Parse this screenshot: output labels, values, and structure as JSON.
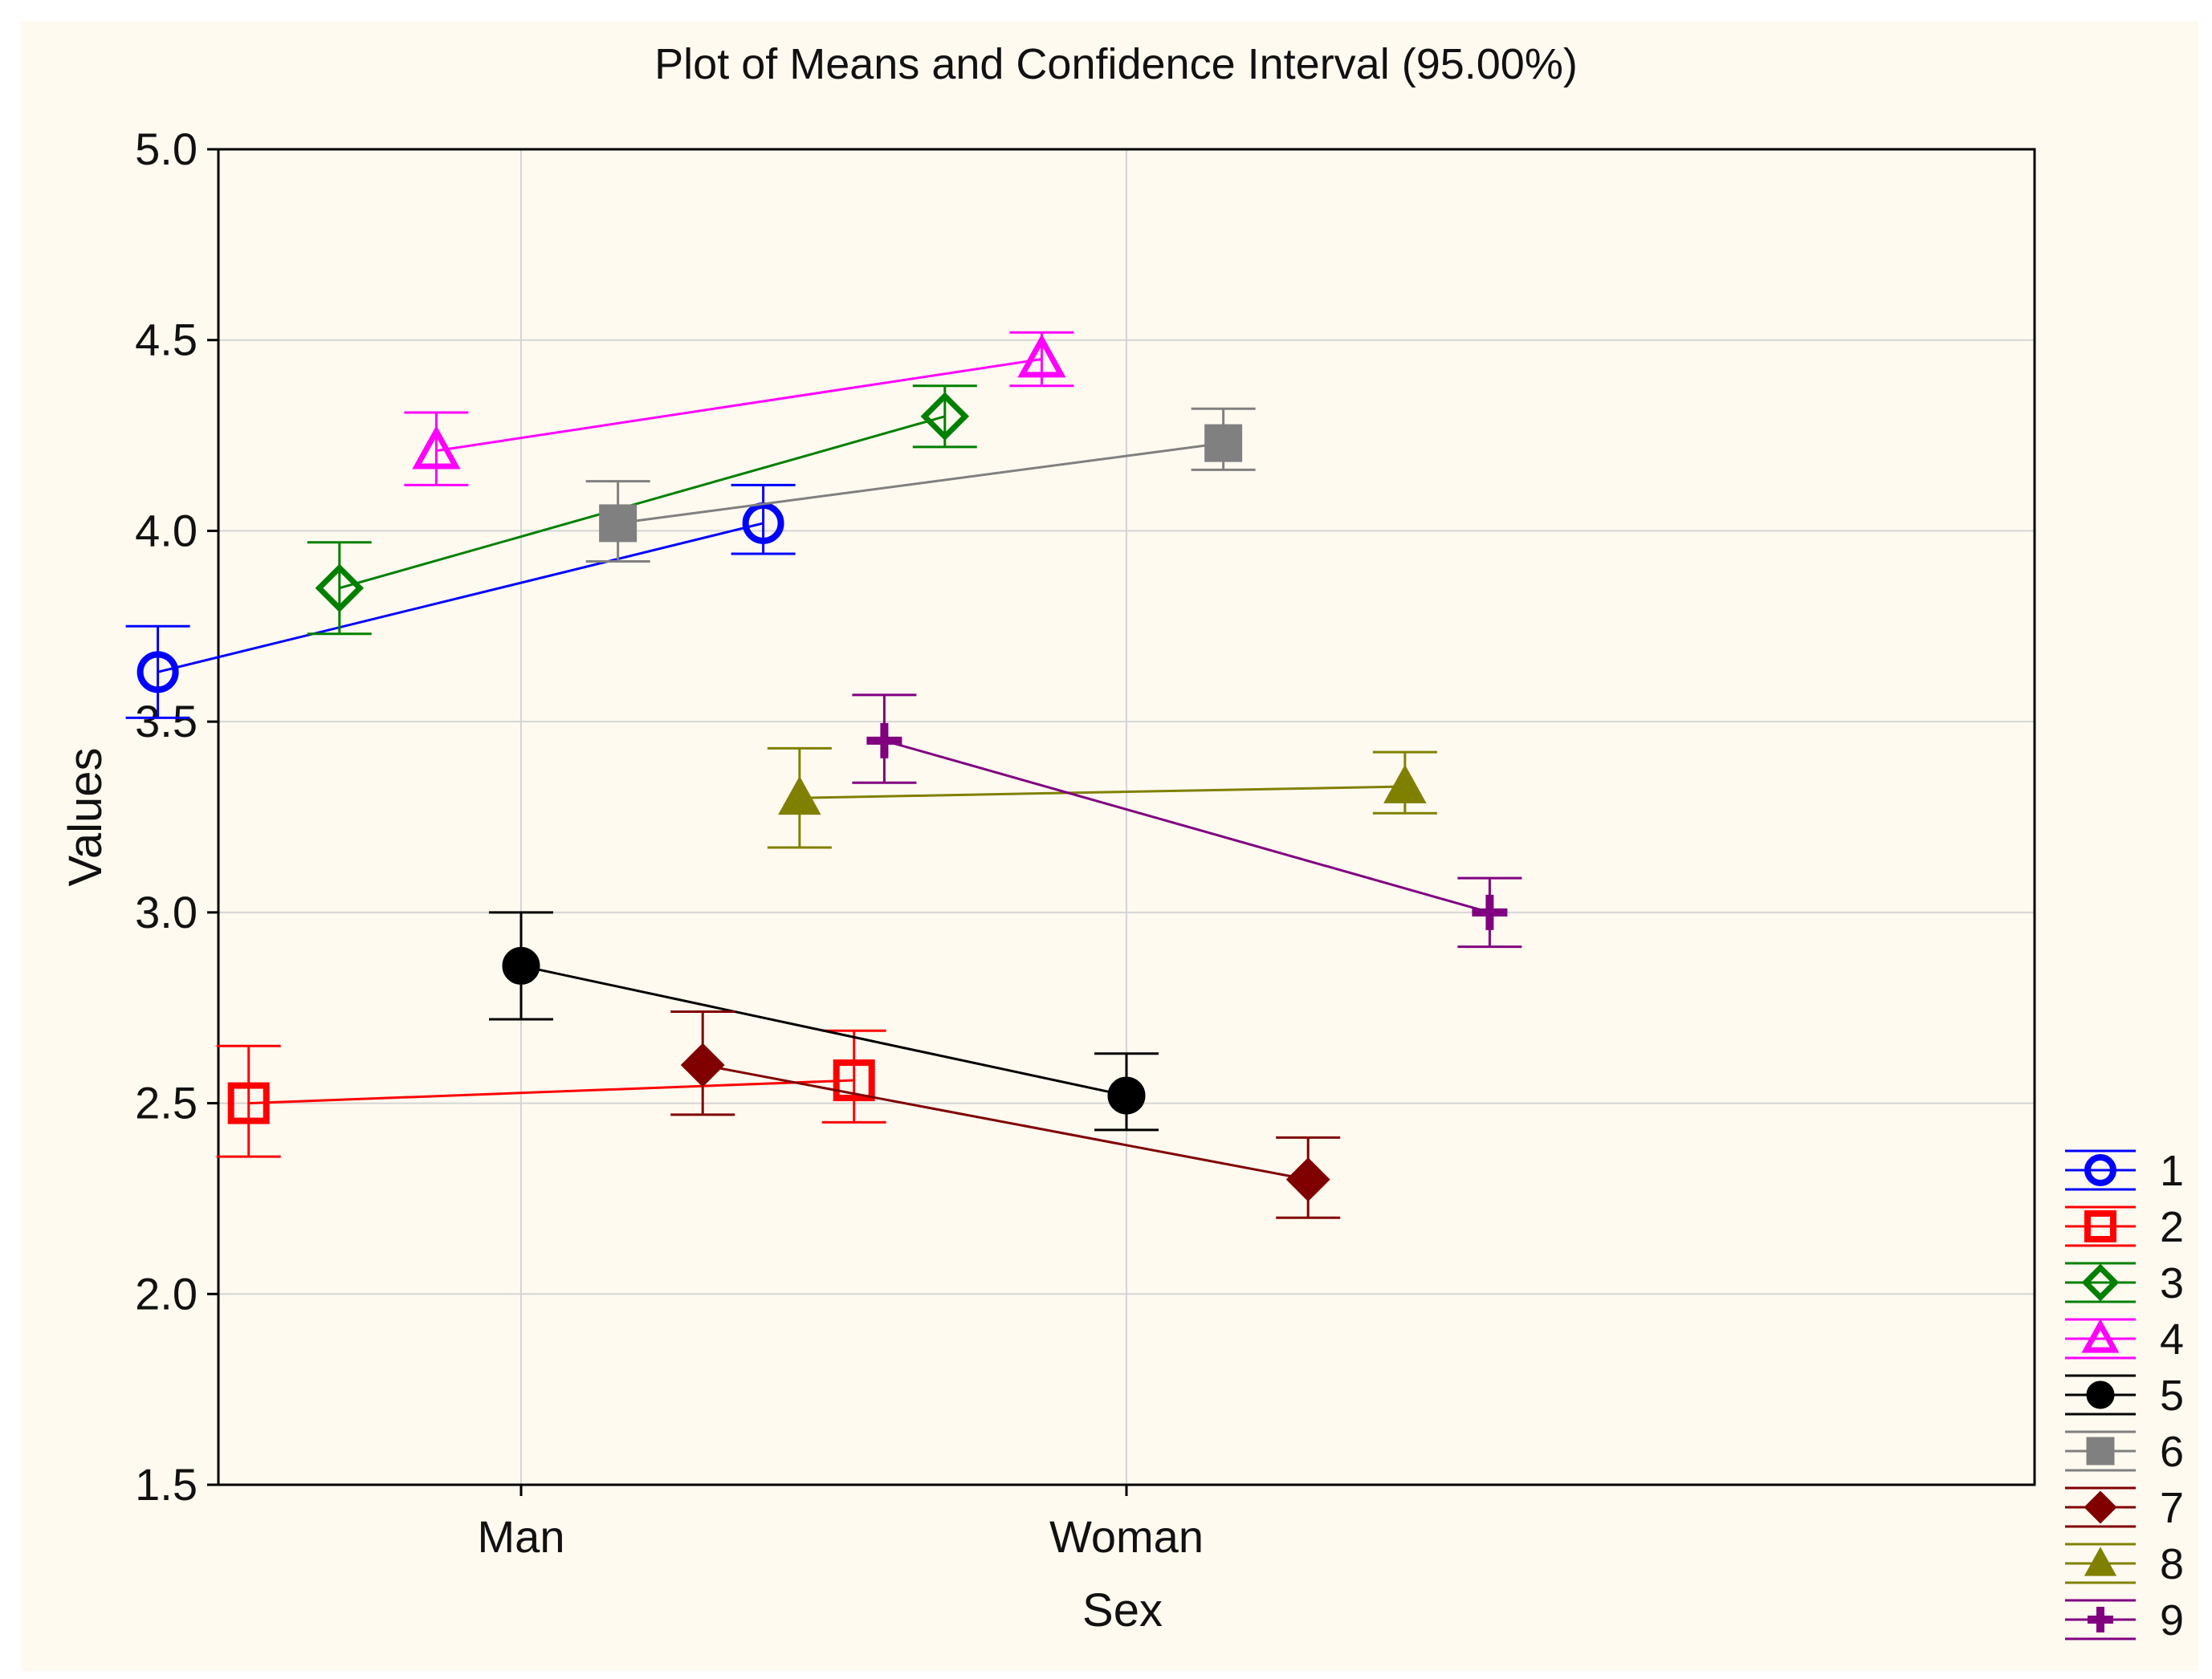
{
  "chart_data": {
    "type": "line",
    "title": "Plot of Means and Confidence Interval (95.00%)",
    "xlabel": "Sex",
    "ylabel": "Values",
    "categories": [
      "Man",
      "Woman"
    ],
    "ylim": [
      1.5,
      5.0
    ],
    "yticks": [
      "1.5",
      "2.0",
      "2.5",
      "3.0",
      "3.5",
      "4.0",
      "4.5",
      "5.0"
    ],
    "grid": true,
    "legend_position": "bottom-right",
    "series": [
      {
        "name": "1",
        "color": "#0000ff",
        "marker": "circle-open",
        "offset": -0.6,
        "values": [
          3.63,
          4.02
        ],
        "ci_low": [
          3.51,
          3.94
        ],
        "ci_high": [
          3.75,
          4.12
        ]
      },
      {
        "name": "2",
        "color": "#ff0000",
        "marker": "square-open",
        "offset": -0.45,
        "values": [
          2.5,
          2.56
        ],
        "ci_low": [
          2.36,
          2.45
        ],
        "ci_high": [
          2.65,
          2.69
        ]
      },
      {
        "name": "3",
        "color": "#008000",
        "marker": "diamond-open",
        "offset": -0.3,
        "values": [
          3.85,
          4.3
        ],
        "ci_low": [
          3.73,
          4.22
        ],
        "ci_high": [
          3.97,
          4.38
        ]
      },
      {
        "name": "4",
        "color": "#ff00ff",
        "marker": "triangle-open",
        "offset": -0.14,
        "values": [
          4.21,
          4.45
        ],
        "ci_low": [
          4.12,
          4.38
        ],
        "ci_high": [
          4.31,
          4.52
        ]
      },
      {
        "name": "5",
        "color": "#000000",
        "marker": "circle-filled",
        "offset": 0.0,
        "values": [
          2.86,
          2.52
        ],
        "ci_low": [
          2.72,
          2.43
        ],
        "ci_high": [
          3.0,
          2.63
        ]
      },
      {
        "name": "6",
        "color": "#808080",
        "marker": "square-filled",
        "offset": 0.16,
        "values": [
          4.02,
          4.23
        ],
        "ci_low": [
          3.92,
          4.16
        ],
        "ci_high": [
          4.13,
          4.32
        ]
      },
      {
        "name": "7",
        "color": "#800000",
        "marker": "diamond-filled",
        "offset": 0.3,
        "values": [
          2.6,
          2.3
        ],
        "ci_low": [
          2.47,
          2.2
        ],
        "ci_high": [
          2.74,
          2.41
        ]
      },
      {
        "name": "8",
        "color": "#808000",
        "marker": "triangle-filled",
        "offset": 0.46,
        "values": [
          3.3,
          3.33
        ],
        "ci_low": [
          3.17,
          3.26
        ],
        "ci_high": [
          3.43,
          3.42
        ]
      },
      {
        "name": "9",
        "color": "#800080",
        "marker": "plus",
        "offset": 0.6,
        "values": [
          3.45,
          3.0
        ],
        "ci_low": [
          3.34,
          2.91
        ],
        "ci_high": [
          3.57,
          3.09
        ]
      }
    ]
  }
}
